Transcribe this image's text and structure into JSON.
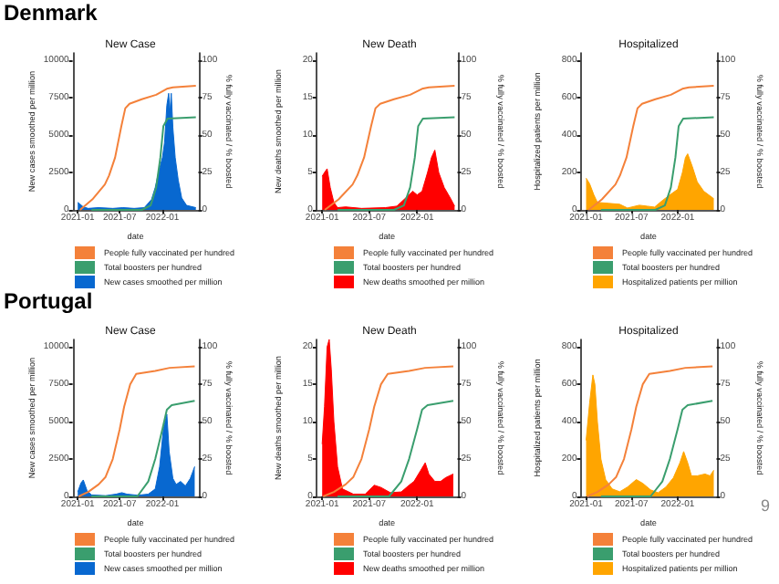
{
  "chart_data": [
    {
      "type": "other",
      "title": "Denmark"
    },
    {
      "type": "area",
      "title": "New Case",
      "xlabel": "date",
      "ylabel": "New cases smoothed per million",
      "y2label": "% fully vaccinated / % boosted",
      "xlim": [
        "2020-12-10",
        "2022-06-05"
      ],
      "xticks": [
        "2021-01",
        "2021-07",
        "2022-01"
      ],
      "ylim": [
        0,
        10500
      ],
      "yticks": [
        0,
        2500,
        5000,
        7500,
        10000
      ],
      "y2lim": [
        0,
        105
      ],
      "y2ticks": [
        0,
        25,
        50,
        75,
        100
      ],
      "legend": "bottom",
      "series": [
        {
          "name": "People fully vaccinated per hundred",
          "type": "line",
          "axis": "y2",
          "color": "#f4813a",
          "x": [
            "2021-01-11",
            "2021-03-05",
            "2021-04-28",
            "2021-05-16",
            "2021-06-11",
            "2021-07-08",
            "2021-07-25",
            "2021-08-12",
            "2021-10-04",
            "2021-12-05",
            "2022-01-20",
            "2022-02-15",
            "2022-05-25"
          ],
          "values": [
            0,
            7,
            17,
            23,
            35,
            56,
            68,
            71,
            74,
            77,
            81,
            82,
            83
          ]
        },
        {
          "name": "Total boosters per hundred",
          "type": "line",
          "axis": "y2",
          "color": "#3a9e6e",
          "x": [
            "2021-03-01",
            "2021-10-04",
            "2021-11-11",
            "2021-12-05",
            "2021-12-23",
            "2022-01-05",
            "2022-01-23",
            "2022-05-25"
          ],
          "values": [
            0,
            0,
            3,
            15,
            35,
            56,
            61,
            62
          ]
        },
        {
          "name": "New cases smoothed per million",
          "type": "area",
          "color": "#0868d0",
          "x": [
            "2021-01-01",
            "2021-01-10",
            "2021-01-25",
            "2021-02-15",
            "2021-04-01",
            "2021-06-01",
            "2021-07-15",
            "2021-09-01",
            "2021-10-15",
            "2021-11-15",
            "2021-12-01",
            "2021-12-15",
            "2022-01-01",
            "2022-01-10",
            "2022-01-20",
            "2022-01-28",
            "2022-02-02",
            "2022-02-08",
            "2022-02-15",
            "2022-02-25",
            "2022-03-10",
            "2022-03-25",
            "2022-04-15",
            "2022-05-25"
          ],
          "values": [
            500,
            400,
            200,
            100,
            150,
            100,
            150,
            100,
            150,
            700,
            1500,
            2500,
            3500,
            4500,
            7000,
            7800,
            6500,
            7800,
            5500,
            3500,
            2000,
            800,
            300,
            150
          ]
        }
      ]
    },
    {
      "type": "area",
      "title": "New Death",
      "xlabel": "date",
      "ylabel": "New deaths smoothed per million",
      "y2label": "% fully vaccinated / % boosted",
      "xlim": [
        "2020-12-10",
        "2022-06-05"
      ],
      "xticks": [
        "2021-01",
        "2021-07",
        "2022-01"
      ],
      "ylim": [
        0,
        21
      ],
      "yticks": [
        0,
        5,
        10,
        15,
        20
      ],
      "y2lim": [
        0,
        105
      ],
      "y2ticks": [
        0,
        25,
        50,
        75,
        100
      ],
      "legend": "bottom",
      "series": [
        {
          "name": "People fully vaccinated per hundred",
          "type": "line",
          "axis": "y2",
          "color": "#f4813a",
          "x": [
            "2021-01-11",
            "2021-03-05",
            "2021-04-28",
            "2021-05-16",
            "2021-06-11",
            "2021-07-08",
            "2021-07-25",
            "2021-08-12",
            "2021-10-04",
            "2021-12-05",
            "2022-01-20",
            "2022-02-15",
            "2022-05-25"
          ],
          "values": [
            0,
            7,
            17,
            23,
            35,
            56,
            68,
            71,
            74,
            77,
            81,
            82,
            83
          ]
        },
        {
          "name": "Total boosters per hundred",
          "type": "line",
          "axis": "y2",
          "color": "#3a9e6e",
          "x": [
            "2021-03-01",
            "2021-10-04",
            "2021-11-11",
            "2021-12-05",
            "2021-12-23",
            "2022-01-05",
            "2022-01-23",
            "2022-05-25"
          ],
          "values": [
            0,
            0,
            3,
            15,
            35,
            56,
            61,
            62
          ]
        },
        {
          "name": "New deaths smoothed per million",
          "type": "area",
          "color": "#ff0000",
          "x": [
            "2021-01-01",
            "2021-01-10",
            "2021-01-20",
            "2021-02-01",
            "2021-02-15",
            "2021-03-01",
            "2021-04-01",
            "2021-06-01",
            "2021-09-01",
            "2021-10-15",
            "2021-11-15",
            "2021-12-15",
            "2022-01-01",
            "2022-01-20",
            "2022-02-10",
            "2022-02-25",
            "2022-03-10",
            "2022-03-25",
            "2022-04-15",
            "2022-05-10",
            "2022-05-25"
          ],
          "values": [
            4.5,
            5,
            5.5,
            3,
            1,
            0.3,
            0.4,
            0.2,
            0.3,
            0.5,
            1.5,
            2.5,
            2,
            2.5,
            5,
            7,
            8,
            5,
            3,
            1.5,
            0.5
          ]
        }
      ]
    },
    {
      "type": "area",
      "title": "Hospitalized",
      "xlabel": "date",
      "ylabel": "Hospitalized patients per million",
      "y2label": "% fully vaccinated / % boosted",
      "xlim": [
        "2020-12-10",
        "2022-06-05"
      ],
      "xticks": [
        "2021-01",
        "2021-07",
        "2022-01"
      ],
      "ylim": [
        0,
        840
      ],
      "yticks": [
        0,
        200,
        400,
        600,
        800
      ],
      "y2lim": [
        0,
        105
      ],
      "y2ticks": [
        0,
        25,
        50,
        75,
        100
      ],
      "legend": "bottom",
      "series": [
        {
          "name": "People fully vaccinated per hundred",
          "type": "line",
          "axis": "y2",
          "color": "#f4813a",
          "x": [
            "2021-01-11",
            "2021-03-05",
            "2021-04-28",
            "2021-05-16",
            "2021-06-11",
            "2021-07-08",
            "2021-07-25",
            "2021-08-12",
            "2021-10-04",
            "2021-12-05",
            "2022-01-20",
            "2022-02-15",
            "2022-05-25"
          ],
          "values": [
            0,
            7,
            17,
            23,
            35,
            56,
            68,
            71,
            74,
            77,
            81,
            82,
            83
          ]
        },
        {
          "name": "Total boosters per hundred",
          "type": "line",
          "axis": "y2",
          "color": "#3a9e6e",
          "x": [
            "2021-03-01",
            "2021-10-04",
            "2021-11-11",
            "2021-12-05",
            "2021-12-23",
            "2022-01-05",
            "2022-01-23",
            "2022-05-25"
          ],
          "values": [
            0,
            0,
            3,
            15,
            35,
            56,
            61,
            62
          ]
        },
        {
          "name": "Hospitalized patients per million",
          "type": "area",
          "color": "#ffa500",
          "x": [
            "2021-01-01",
            "2021-01-15",
            "2021-02-01",
            "2021-02-15",
            "2021-04-01",
            "2021-05-15",
            "2021-06-15",
            "2021-08-01",
            "2021-09-01",
            "2021-10-01",
            "2021-11-01",
            "2021-12-01",
            "2022-01-01",
            "2022-01-20",
            "2022-02-01",
            "2022-02-10",
            "2022-03-01",
            "2022-03-20",
            "2022-04-15",
            "2022-05-25"
          ],
          "values": [
            170,
            140,
            80,
            40,
            35,
            30,
            10,
            25,
            20,
            15,
            50,
            80,
            110,
            200,
            280,
            300,
            230,
            150,
            100,
            60
          ]
        }
      ]
    },
    {
      "type": "other",
      "title": "Portugal"
    },
    {
      "type": "area",
      "title": "New Case",
      "xlabel": "date",
      "ylabel": "New cases smoothed per million",
      "y2label": "% fully vaccinated / % boosted",
      "xlim": [
        "2020-12-10",
        "2022-06-05"
      ],
      "xticks": [
        "2021-01",
        "2021-07",
        "2022-01"
      ],
      "ylim": [
        0,
        10500
      ],
      "yticks": [
        0,
        2500,
        5000,
        7500,
        10000
      ],
      "y2lim": [
        0,
        105
      ],
      "y2ticks": [
        0,
        25,
        50,
        75,
        100
      ],
      "legend": "bottom",
      "series": [
        {
          "name": "People fully vaccinated per hundred",
          "type": "line",
          "axis": "y2",
          "color": "#f4813a",
          "x": [
            "2021-01-05",
            "2021-02-15",
            "2021-04-01",
            "2021-05-01",
            "2021-06-01",
            "2021-07-01",
            "2021-07-20",
            "2021-08-15",
            "2021-09-10",
            "2021-12-01",
            "2022-02-01",
            "2022-05-20"
          ],
          "values": [
            0,
            3,
            8,
            13,
            25,
            45,
            60,
            75,
            82,
            84,
            86,
            87
          ]
        },
        {
          "name": "Total boosters per hundred",
          "type": "line",
          "axis": "y2",
          "color": "#3a9e6e",
          "x": [
            "2021-03-01",
            "2021-09-15",
            "2021-11-01",
            "2021-12-01",
            "2022-01-01",
            "2022-01-20",
            "2022-02-10",
            "2022-05-20"
          ],
          "values": [
            0,
            0,
            10,
            25,
            45,
            58,
            61,
            64
          ]
        },
        {
          "name": "New cases smoothed per million",
          "type": "area",
          "color": "#0868d0",
          "x": [
            "2021-01-01",
            "2021-01-15",
            "2021-01-25",
            "2021-02-10",
            "2021-03-01",
            "2021-05-01",
            "2021-06-15",
            "2021-07-10",
            "2021-08-01",
            "2021-09-15",
            "2021-11-01",
            "2021-12-01",
            "2021-12-20",
            "2022-01-05",
            "2022-01-20",
            "2022-01-30",
            "2022-02-15",
            "2022-03-01",
            "2022-03-20",
            "2022-04-10",
            "2022-05-01",
            "2022-05-20"
          ],
          "values": [
            300,
            900,
            1100,
            400,
            100,
            50,
            150,
            250,
            150,
            80,
            150,
            500,
            2000,
            4500,
            5500,
            3000,
            1200,
            800,
            1000,
            700,
            1200,
            2000
          ]
        }
      ]
    },
    {
      "type": "area",
      "title": "New Death",
      "xlabel": "date",
      "ylabel": "New deaths smoothed per million",
      "y2label": "% fully vaccinated / % boosted",
      "xlim": [
        "2020-12-10",
        "2022-06-05"
      ],
      "xticks": [
        "2021-01",
        "2021-07",
        "2022-01"
      ],
      "ylim": [
        0,
        21
      ],
      "yticks": [
        0,
        5,
        10,
        15,
        20
      ],
      "y2lim": [
        0,
        105
      ],
      "y2ticks": [
        0,
        25,
        50,
        75,
        100
      ],
      "legend": "bottom",
      "series": [
        {
          "name": "People fully vaccinated per hundred",
          "type": "line",
          "axis": "y2",
          "color": "#f4813a",
          "x": [
            "2021-01-05",
            "2021-02-15",
            "2021-04-01",
            "2021-05-01",
            "2021-06-01",
            "2021-07-01",
            "2021-07-20",
            "2021-08-15",
            "2021-09-10",
            "2021-12-01",
            "2022-02-01",
            "2022-05-20"
          ],
          "values": [
            0,
            3,
            8,
            13,
            25,
            45,
            60,
            75,
            82,
            84,
            86,
            87
          ]
        },
        {
          "name": "Total boosters per hundred",
          "type": "line",
          "axis": "y2",
          "color": "#3a9e6e",
          "x": [
            "2021-03-01",
            "2021-09-15",
            "2021-11-01",
            "2021-12-01",
            "2022-01-01",
            "2022-01-20",
            "2022-02-10",
            "2022-05-20"
          ],
          "values": [
            0,
            0,
            10,
            25,
            45,
            58,
            61,
            64
          ]
        },
        {
          "name": "New deaths smoothed per million",
          "type": "area",
          "color": "#ff0000",
          "x": [
            "2021-01-01",
            "2021-01-10",
            "2021-01-20",
            "2021-01-28",
            "2021-02-05",
            "2021-02-15",
            "2021-03-01",
            "2021-03-20",
            "2021-05-01",
            "2021-06-15",
            "2021-07-20",
            "2021-08-15",
            "2021-09-20",
            "2021-11-01",
            "2021-12-01",
            "2021-12-20",
            "2022-01-15",
            "2022-02-01",
            "2022-02-15",
            "2022-03-10",
            "2022-04-01",
            "2022-04-20",
            "2022-05-20"
          ],
          "values": [
            7,
            12,
            20,
            21,
            17,
            10,
            4,
            1,
            0.3,
            0.3,
            1.5,
            1.2,
            0.5,
            0.6,
            1.5,
            2,
            3.5,
            4.5,
            3,
            2,
            2,
            2.5,
            3
          ]
        }
      ]
    },
    {
      "type": "area",
      "title": "Hospitalized",
      "xlabel": "date",
      "ylabel": "Hospitalized patients per million",
      "y2label": "% fully vaccinated / % boosted",
      "xlim": [
        "2020-12-10",
        "2022-06-05"
      ],
      "xticks": [
        "2021-01",
        "2021-07",
        "2022-01"
      ],
      "ylim": [
        0,
        840
      ],
      "yticks": [
        0,
        200,
        400,
        600,
        800
      ],
      "y2lim": [
        0,
        105
      ],
      "y2ticks": [
        0,
        25,
        50,
        75,
        100
      ],
      "legend": "bottom",
      "series": [
        {
          "name": "People fully vaccinated per hundred",
          "type": "line",
          "axis": "y2",
          "color": "#f4813a",
          "x": [
            "2021-01-05",
            "2021-02-15",
            "2021-04-01",
            "2021-05-01",
            "2021-06-01",
            "2021-07-01",
            "2021-07-20",
            "2021-08-15",
            "2021-09-10",
            "2021-12-01",
            "2022-02-01",
            "2022-05-20"
          ],
          "values": [
            0,
            3,
            8,
            13,
            25,
            45,
            60,
            75,
            82,
            84,
            86,
            87
          ]
        },
        {
          "name": "Total boosters per hundred",
          "type": "line",
          "axis": "y2",
          "color": "#3a9e6e",
          "x": [
            "2021-03-01",
            "2021-09-15",
            "2021-11-01",
            "2021-12-01",
            "2022-01-01",
            "2022-01-20",
            "2022-02-10",
            "2022-05-20"
          ],
          "values": [
            0,
            0,
            10,
            25,
            45,
            58,
            61,
            64
          ]
        },
        {
          "name": "Hospitalized patients per million",
          "type": "area",
          "color": "#ffa500",
          "x": [
            "2021-01-01",
            "2021-01-15",
            "2021-01-28",
            "2021-02-05",
            "2021-02-15",
            "2021-03-01",
            "2021-03-20",
            "2021-04-15",
            "2021-05-15",
            "2021-06-15",
            "2021-07-20",
            "2021-08-15",
            "2021-09-15",
            "2021-10-15",
            "2021-11-15",
            "2021-12-15",
            "2022-01-10",
            "2022-01-25",
            "2022-02-10",
            "2022-02-25",
            "2022-03-20",
            "2022-04-20",
            "2022-05-10",
            "2022-05-25"
          ],
          "values": [
            300,
            500,
            650,
            600,
            400,
            200,
            90,
            40,
            25,
            50,
            90,
            70,
            35,
            20,
            50,
            100,
            180,
            240,
            180,
            110,
            110,
            120,
            110,
            140
          ]
        }
      ]
    },
    {
      "type": "other",
      "annotations": [
        "9"
      ]
    }
  ]
}
